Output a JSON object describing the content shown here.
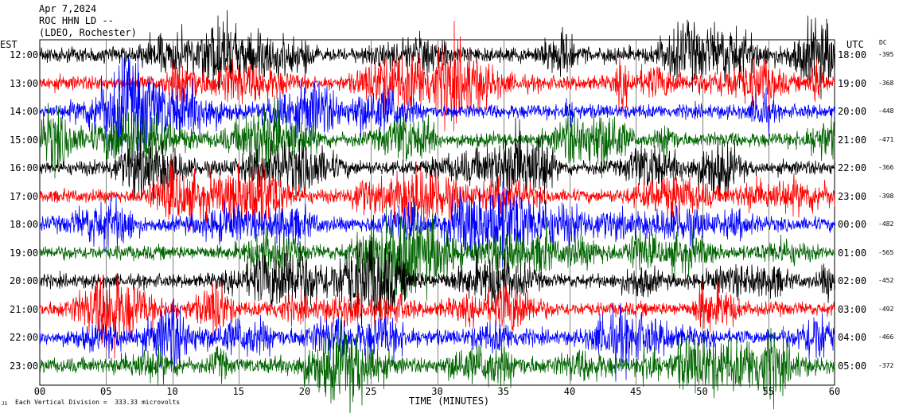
{
  "header": {
    "date": "Apr 7,2024",
    "station": "ROC HHN LD --",
    "network": "(LDEO, Rochester)"
  },
  "left_axis_title": "EST",
  "right_axis_title": "UTC",
  "dc_title": "DC",
  "footer": {
    "scale_note": "Each Vertical Division =  333.33 microvolts",
    "corner_mark": "JS"
  },
  "chart_data": {
    "type": "line",
    "title": "",
    "xlabel": "TIME (MINUTES)",
    "ylabel": "",
    "xlim": [
      0,
      60
    ],
    "x_ticks": [
      "00",
      "05",
      "10",
      "15",
      "20",
      "25",
      "30",
      "35",
      "40",
      "45",
      "50",
      "55",
      "60"
    ],
    "grid": true,
    "trace_colors": [
      "#000000",
      "#ff0000",
      "#0000ff",
      "#006400"
    ],
    "rows": [
      {
        "est": "12:00",
        "utc": "18:00",
        "dc": "-395",
        "color": "#000000",
        "activity": 0.9
      },
      {
        "est": "13:00",
        "utc": "19:00",
        "dc": "-368",
        "color": "#ff0000",
        "activity": 0.8
      },
      {
        "est": "14:00",
        "utc": "20:00",
        "dc": "-448",
        "color": "#0000ff",
        "activity": 0.75
      },
      {
        "est": "15:00",
        "utc": "21:00",
        "dc": "-471",
        "color": "#006400",
        "activity": 0.8
      },
      {
        "est": "16:00",
        "utc": "22:00",
        "dc": "-366",
        "color": "#000000",
        "activity": 0.75
      },
      {
        "est": "17:00",
        "utc": "23:00",
        "dc": "-398",
        "color": "#ff0000",
        "activity": 0.6
      },
      {
        "est": "18:00",
        "utc": "00:00",
        "dc": "-482",
        "color": "#0000ff",
        "activity": 0.7
      },
      {
        "est": "19:00",
        "utc": "01:00",
        "dc": "-565",
        "color": "#006400",
        "activity": 0.75
      },
      {
        "est": "20:00",
        "utc": "02:00",
        "dc": "-452",
        "color": "#000000",
        "activity": 0.7
      },
      {
        "est": "21:00",
        "utc": "03:00",
        "dc": "-492",
        "color": "#ff0000",
        "activity": 0.7
      },
      {
        "est": "22:00",
        "utc": "04:00",
        "dc": "-466",
        "color": "#0000ff",
        "activity": 0.8
      },
      {
        "est": "23:00",
        "utc": "05:00",
        "dc": "-372",
        "color": "#006400",
        "activity": 0.9
      }
    ]
  }
}
